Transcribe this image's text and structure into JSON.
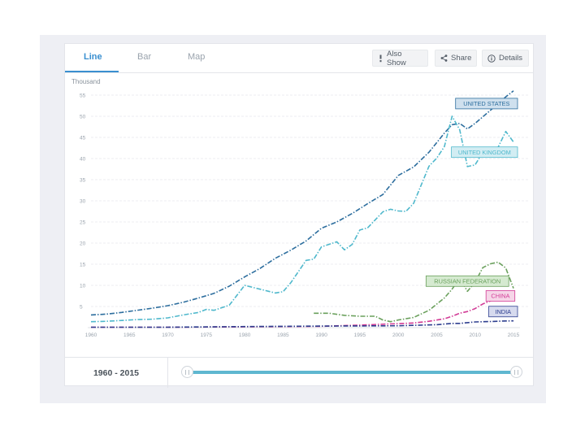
{
  "tabs": [
    {
      "label": "Line",
      "active": true
    },
    {
      "label": "Bar",
      "active": false
    },
    {
      "label": "Map",
      "active": false
    }
  ],
  "toolbar": {
    "also_show": "Also Show",
    "share": "Share",
    "details": "Details"
  },
  "range": {
    "label": "1960 - 2015",
    "start": 1960,
    "end": 2015
  },
  "colors": {
    "accent": "#3a8fd0",
    "slider": "#5fb7d0",
    "united_states": "#2d6e9e",
    "united_kingdom": "#4fb8cc",
    "russian_federation": "#6aa05c",
    "china": "#d23c96",
    "india": "#2e3f8f"
  },
  "chart_data": {
    "type": "line",
    "ylabel": "Thousand",
    "xlabel": "",
    "xlim": [
      1960,
      2015
    ],
    "ylim": [
      0,
      55
    ],
    "x_ticks": [
      1960,
      1965,
      1970,
      1975,
      1980,
      1985,
      1990,
      1995,
      2000,
      2005,
      2010,
      2015
    ],
    "y_ticks": [
      5,
      10,
      15,
      20,
      25,
      30,
      35,
      40,
      45,
      50,
      55
    ],
    "series": [
      {
        "name": "UNITED STATES",
        "color": "#2d6e9e",
        "label_bg": "#cfe0ee",
        "label_year": 2012,
        "label_value": 53,
        "points": [
          [
            1960,
            3.0
          ],
          [
            1962,
            3.2
          ],
          [
            1964,
            3.6
          ],
          [
            1966,
            4.1
          ],
          [
            1968,
            4.6
          ],
          [
            1970,
            5.2
          ],
          [
            1972,
            6.0
          ],
          [
            1974,
            7.0
          ],
          [
            1976,
            8.1
          ],
          [
            1978,
            9.8
          ],
          [
            1980,
            12.0
          ],
          [
            1982,
            14.0
          ],
          [
            1984,
            16.4
          ],
          [
            1986,
            18.3
          ],
          [
            1988,
            20.5
          ],
          [
            1990,
            23.5
          ],
          [
            1992,
            25.0
          ],
          [
            1994,
            27.0
          ],
          [
            1996,
            29.3
          ],
          [
            1998,
            31.5
          ],
          [
            2000,
            36.0
          ],
          [
            2002,
            38.0
          ],
          [
            2004,
            41.5
          ],
          [
            2006,
            46.0
          ],
          [
            2007,
            48.0
          ],
          [
            2008,
            48.3
          ],
          [
            2009,
            47.0
          ],
          [
            2010,
            48.3
          ],
          [
            2012,
            51.4
          ],
          [
            2013,
            53.0
          ],
          [
            2014,
            54.6
          ],
          [
            2015,
            56.0
          ]
        ]
      },
      {
        "name": "UNITED KINGDOM",
        "color": "#4fb8cc",
        "label_year": 2012,
        "label_value": 41.5,
        "label_bg": "#d2edf3",
        "points": [
          [
            1960,
            1.4
          ],
          [
            1962,
            1.5
          ],
          [
            1964,
            1.7
          ],
          [
            1966,
            1.9
          ],
          [
            1968,
            2.0
          ],
          [
            1970,
            2.3
          ],
          [
            1972,
            3.0
          ],
          [
            1974,
            3.6
          ],
          [
            1975,
            4.3
          ],
          [
            1976,
            4.1
          ],
          [
            1978,
            5.3
          ],
          [
            1980,
            10.0
          ],
          [
            1982,
            9.1
          ],
          [
            1984,
            8.2
          ],
          [
            1985,
            8.5
          ],
          [
            1986,
            10.6
          ],
          [
            1988,
            15.9
          ],
          [
            1989,
            16.2
          ],
          [
            1990,
            19.1
          ],
          [
            1992,
            20.3
          ],
          [
            1993,
            18.4
          ],
          [
            1994,
            19.7
          ],
          [
            1995,
            23.1
          ],
          [
            1996,
            23.6
          ],
          [
            1998,
            27.4
          ],
          [
            1999,
            28.0
          ],
          [
            2000,
            27.6
          ],
          [
            2001,
            27.5
          ],
          [
            2002,
            29.4
          ],
          [
            2004,
            38.2
          ],
          [
            2005,
            40.1
          ],
          [
            2006,
            42.8
          ],
          [
            2007,
            50.0
          ],
          [
            2008,
            46.8
          ],
          [
            2009,
            38.1
          ],
          [
            2010,
            38.5
          ],
          [
            2011,
            41.4
          ],
          [
            2012,
            41.5
          ],
          [
            2013,
            42.7
          ],
          [
            2014,
            46.4
          ],
          [
            2015,
            43.9
          ]
        ]
      },
      {
        "name": "RUSSIAN FEDERATION",
        "color": "#6aa05c",
        "label_bg": "#d5ead0",
        "label_year": 2009,
        "label_value": 11,
        "points": [
          [
            1989,
            3.4
          ],
          [
            1991,
            3.4
          ],
          [
            1993,
            2.9
          ],
          [
            1995,
            2.7
          ],
          [
            1997,
            2.7
          ],
          [
            1998,
            1.8
          ],
          [
            1999,
            1.4
          ],
          [
            2000,
            1.8
          ],
          [
            2002,
            2.4
          ],
          [
            2004,
            4.1
          ],
          [
            2006,
            7.0
          ],
          [
            2007,
            9.1
          ],
          [
            2008,
            11.7
          ],
          [
            2009,
            8.6
          ],
          [
            2010,
            10.7
          ],
          [
            2011,
            14.2
          ],
          [
            2012,
            15.1
          ],
          [
            2013,
            15.5
          ],
          [
            2014,
            14.1
          ],
          [
            2015,
            9.3
          ]
        ]
      },
      {
        "name": "CHINA",
        "color": "#d23c96",
        "label_bg": "#f6d6e8",
        "label_year": 2013.3,
        "label_value": 7.5,
        "points": [
          [
            1960,
            0.1
          ],
          [
            1970,
            0.1
          ],
          [
            1980,
            0.2
          ],
          [
            1990,
            0.3
          ],
          [
            1995,
            0.6
          ],
          [
            2000,
            0.95
          ],
          [
            2002,
            1.1
          ],
          [
            2004,
            1.5
          ],
          [
            2006,
            2.1
          ],
          [
            2007,
            2.7
          ],
          [
            2008,
            3.4
          ],
          [
            2009,
            3.8
          ],
          [
            2010,
            4.5
          ],
          [
            2011,
            5.6
          ],
          [
            2012,
            6.3
          ],
          [
            2013,
            7.1
          ],
          [
            2014,
            7.7
          ],
          [
            2015,
            8.0
          ]
        ]
      },
      {
        "name": "INDIA",
        "color": "#2e3f8f",
        "label_bg": "#d6daee",
        "label_year": 2014,
        "label_value": 3.8,
        "points": [
          [
            1960,
            0.1
          ],
          [
            1970,
            0.1
          ],
          [
            1980,
            0.25
          ],
          [
            1990,
            0.37
          ],
          [
            2000,
            0.45
          ],
          [
            2005,
            0.7
          ],
          [
            2007,
            1.0
          ],
          [
            2008,
            1.0
          ],
          [
            2010,
            1.35
          ],
          [
            2012,
            1.45
          ],
          [
            2014,
            1.57
          ],
          [
            2015,
            1.6
          ]
        ]
      }
    ]
  }
}
